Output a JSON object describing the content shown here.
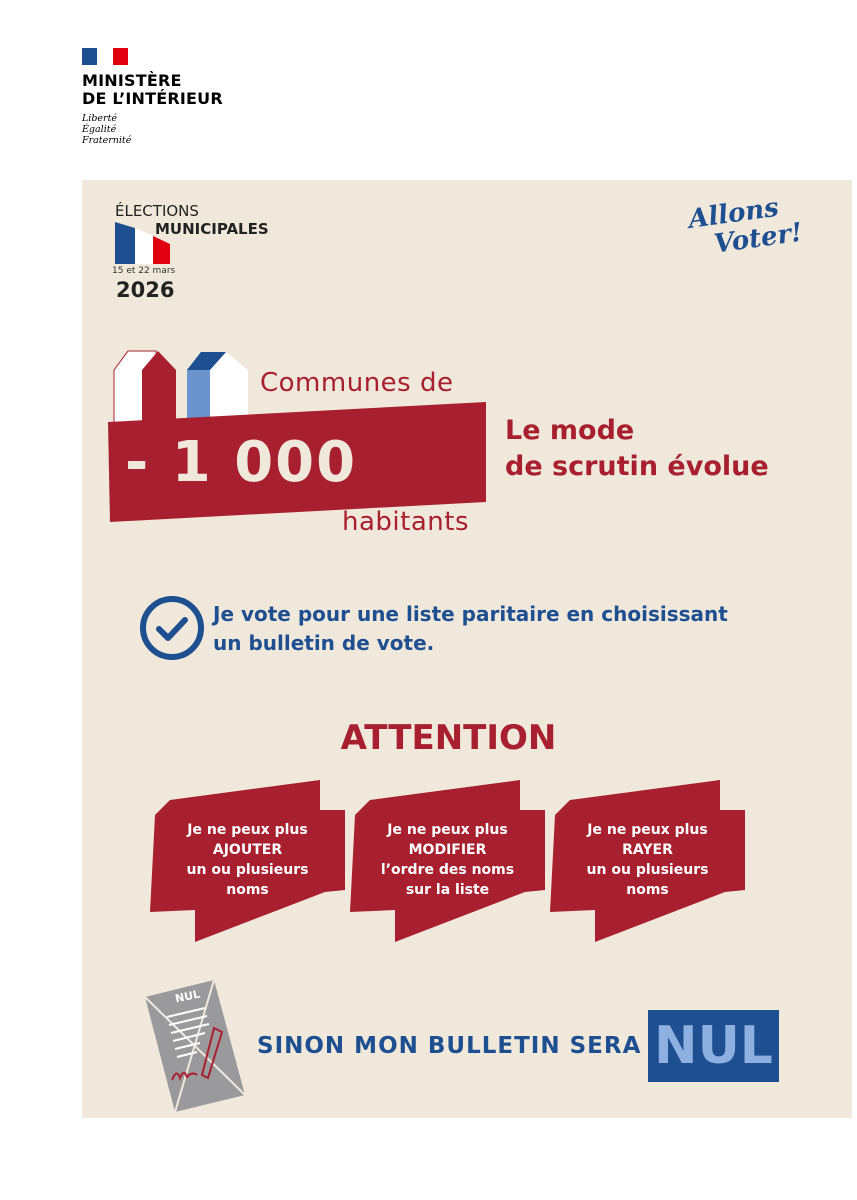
{
  "header": {
    "ministry_line1": "MINISTÈRE",
    "ministry_line2": "DE L’INTÉRIEUR",
    "motto": [
      "Liberté",
      "Égalité",
      "Fraternité"
    ]
  },
  "election": {
    "line1": "ÉLECTIONS",
    "line2": "MUNICIPALES",
    "dates": "15 et 22 mars",
    "year": "2026",
    "slogan_line1": "Allons",
    "slogan_line2": "Voter!"
  },
  "headline": {
    "prefix": "Communes de",
    "number": "- 1 000",
    "suffix": "habitants",
    "mode_line1": "Le mode",
    "mode_line2": "de scrutin évolue"
  },
  "vote": {
    "line1": "Je vote pour une liste paritaire en choisissant",
    "line2": "un bulletin de vote."
  },
  "attention": {
    "title": "ATTENTION",
    "items": [
      {
        "l1": "Je ne peux plus",
        "l2": "AJOUTER",
        "l3": "un ou plusieurs",
        "l4": "noms"
      },
      {
        "l1": "Je ne peux plus",
        "l2": "MODIFIER",
        "l3": "l’ordre des noms",
        "l4": "sur la liste"
      },
      {
        "l1": "Je ne peux plus",
        "l2": "RAYER",
        "l3": "un ou plusieurs",
        "l4": "noms"
      }
    ]
  },
  "footer": {
    "ballot_label": "NUL",
    "text": "SINON MON BULLETIN SERA",
    "nul": "NUL"
  },
  "colors": {
    "red": "#a8202f",
    "blue": "#1d4f91",
    "beige": "#f1e8dc",
    "light_blue": "#8eb0e0"
  }
}
